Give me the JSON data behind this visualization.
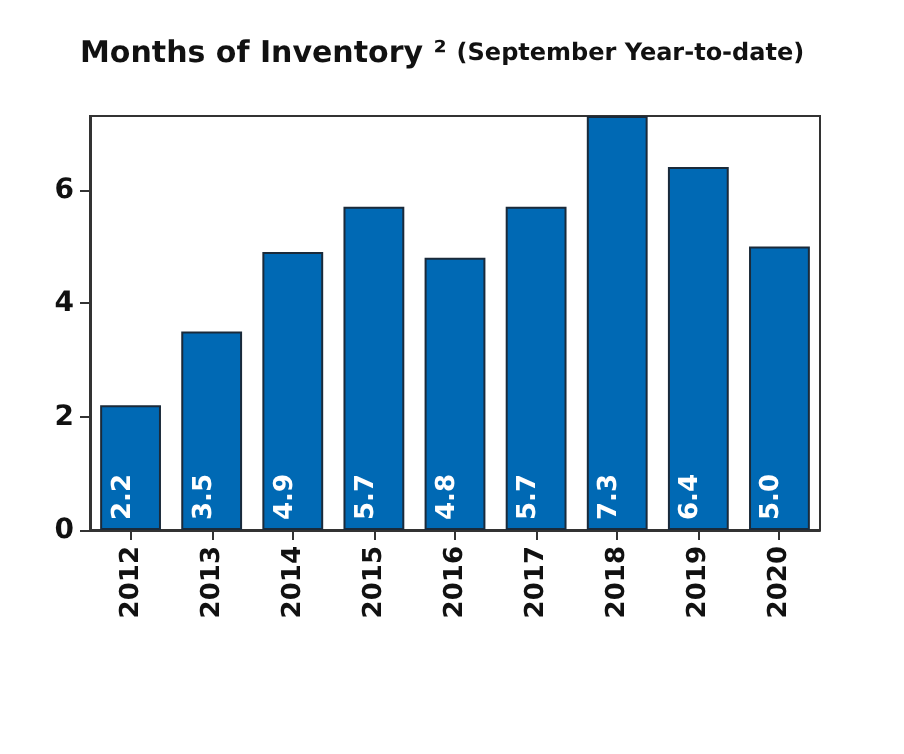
{
  "chart_data": {
    "type": "bar",
    "title": "Months of Inventory ²",
    "subtitle": "(September Year-to-date)",
    "categories": [
      "2012",
      "2013",
      "2014",
      "2015",
      "2016",
      "2017",
      "2018",
      "2019",
      "2020"
    ],
    "values": [
      2.2,
      3.5,
      4.9,
      5.7,
      4.8,
      5.7,
      7.3,
      6.4,
      5.0
    ],
    "value_labels": [
      "2.2",
      "3.5",
      "4.9",
      "5.7",
      "4.8",
      "5.7",
      "7.3",
      "6.4",
      "5.0"
    ],
    "color": "#0069b4",
    "ylim": [
      0,
      7.3
    ],
    "yticks": [
      0,
      2,
      4,
      6
    ],
    "grid": false
  }
}
